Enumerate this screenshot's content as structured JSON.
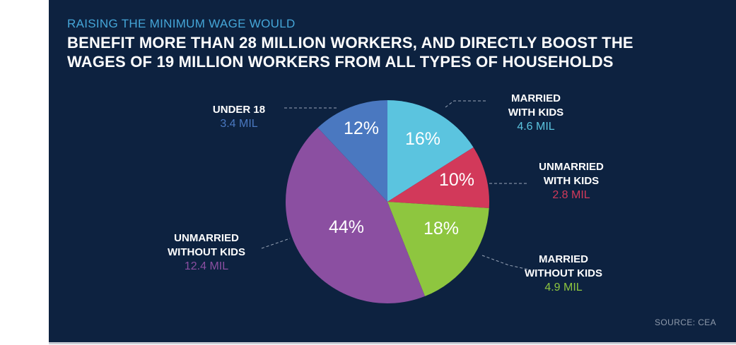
{
  "header": {
    "subtitle": "RAISING THE MINIMUM WAGE WOULD",
    "title_line1": "BENEFIT MORE THAN 28 MILLION WORKERS, AND DIRECTLY BOOST THE",
    "title_line2": "WAGES OF 19 MILLION WORKERS FROM ALL TYPES OF HOUSEHOLDS"
  },
  "source": "SOURCE: CEA",
  "chart_data": {
    "type": "pie",
    "title": "BENEFIT MORE THAN 28 MILLION WORKERS, AND DIRECTLY BOOST THE WAGES OF 19 MILLION WORKERS FROM ALL TYPES OF HOUSEHOLDS",
    "slices": [
      {
        "label_lines": [
          "MARRIED",
          "WITH KIDS"
        ],
        "value": 4.6,
        "value_label": "4.6 MIL",
        "percent": 16,
        "percent_label": "16%",
        "color": "#5bc4df"
      },
      {
        "label_lines": [
          "UNMARRIED",
          "WITH KIDS"
        ],
        "value": 2.8,
        "value_label": "2.8 MIL",
        "percent": 10,
        "percent_label": "10%",
        "color": "#d2395a"
      },
      {
        "label_lines": [
          "MARRIED",
          "WITHOUT KIDS"
        ],
        "value": 4.9,
        "value_label": "4.9 MIL",
        "percent": 18,
        "percent_label": "18%",
        "color": "#8ec63f"
      },
      {
        "label_lines": [
          "UNMARRIED",
          "WITHOUT KIDS"
        ],
        "value": 12.4,
        "value_label": "12.4 MIL",
        "percent": 44,
        "percent_label": "44%",
        "color": "#8b4fa1"
      },
      {
        "label_lines": [
          "UNDER 18"
        ],
        "value": 3.4,
        "value_label": "3.4 MIL",
        "percent": 12,
        "percent_label": "12%",
        "color": "#4a78c0"
      }
    ]
  }
}
